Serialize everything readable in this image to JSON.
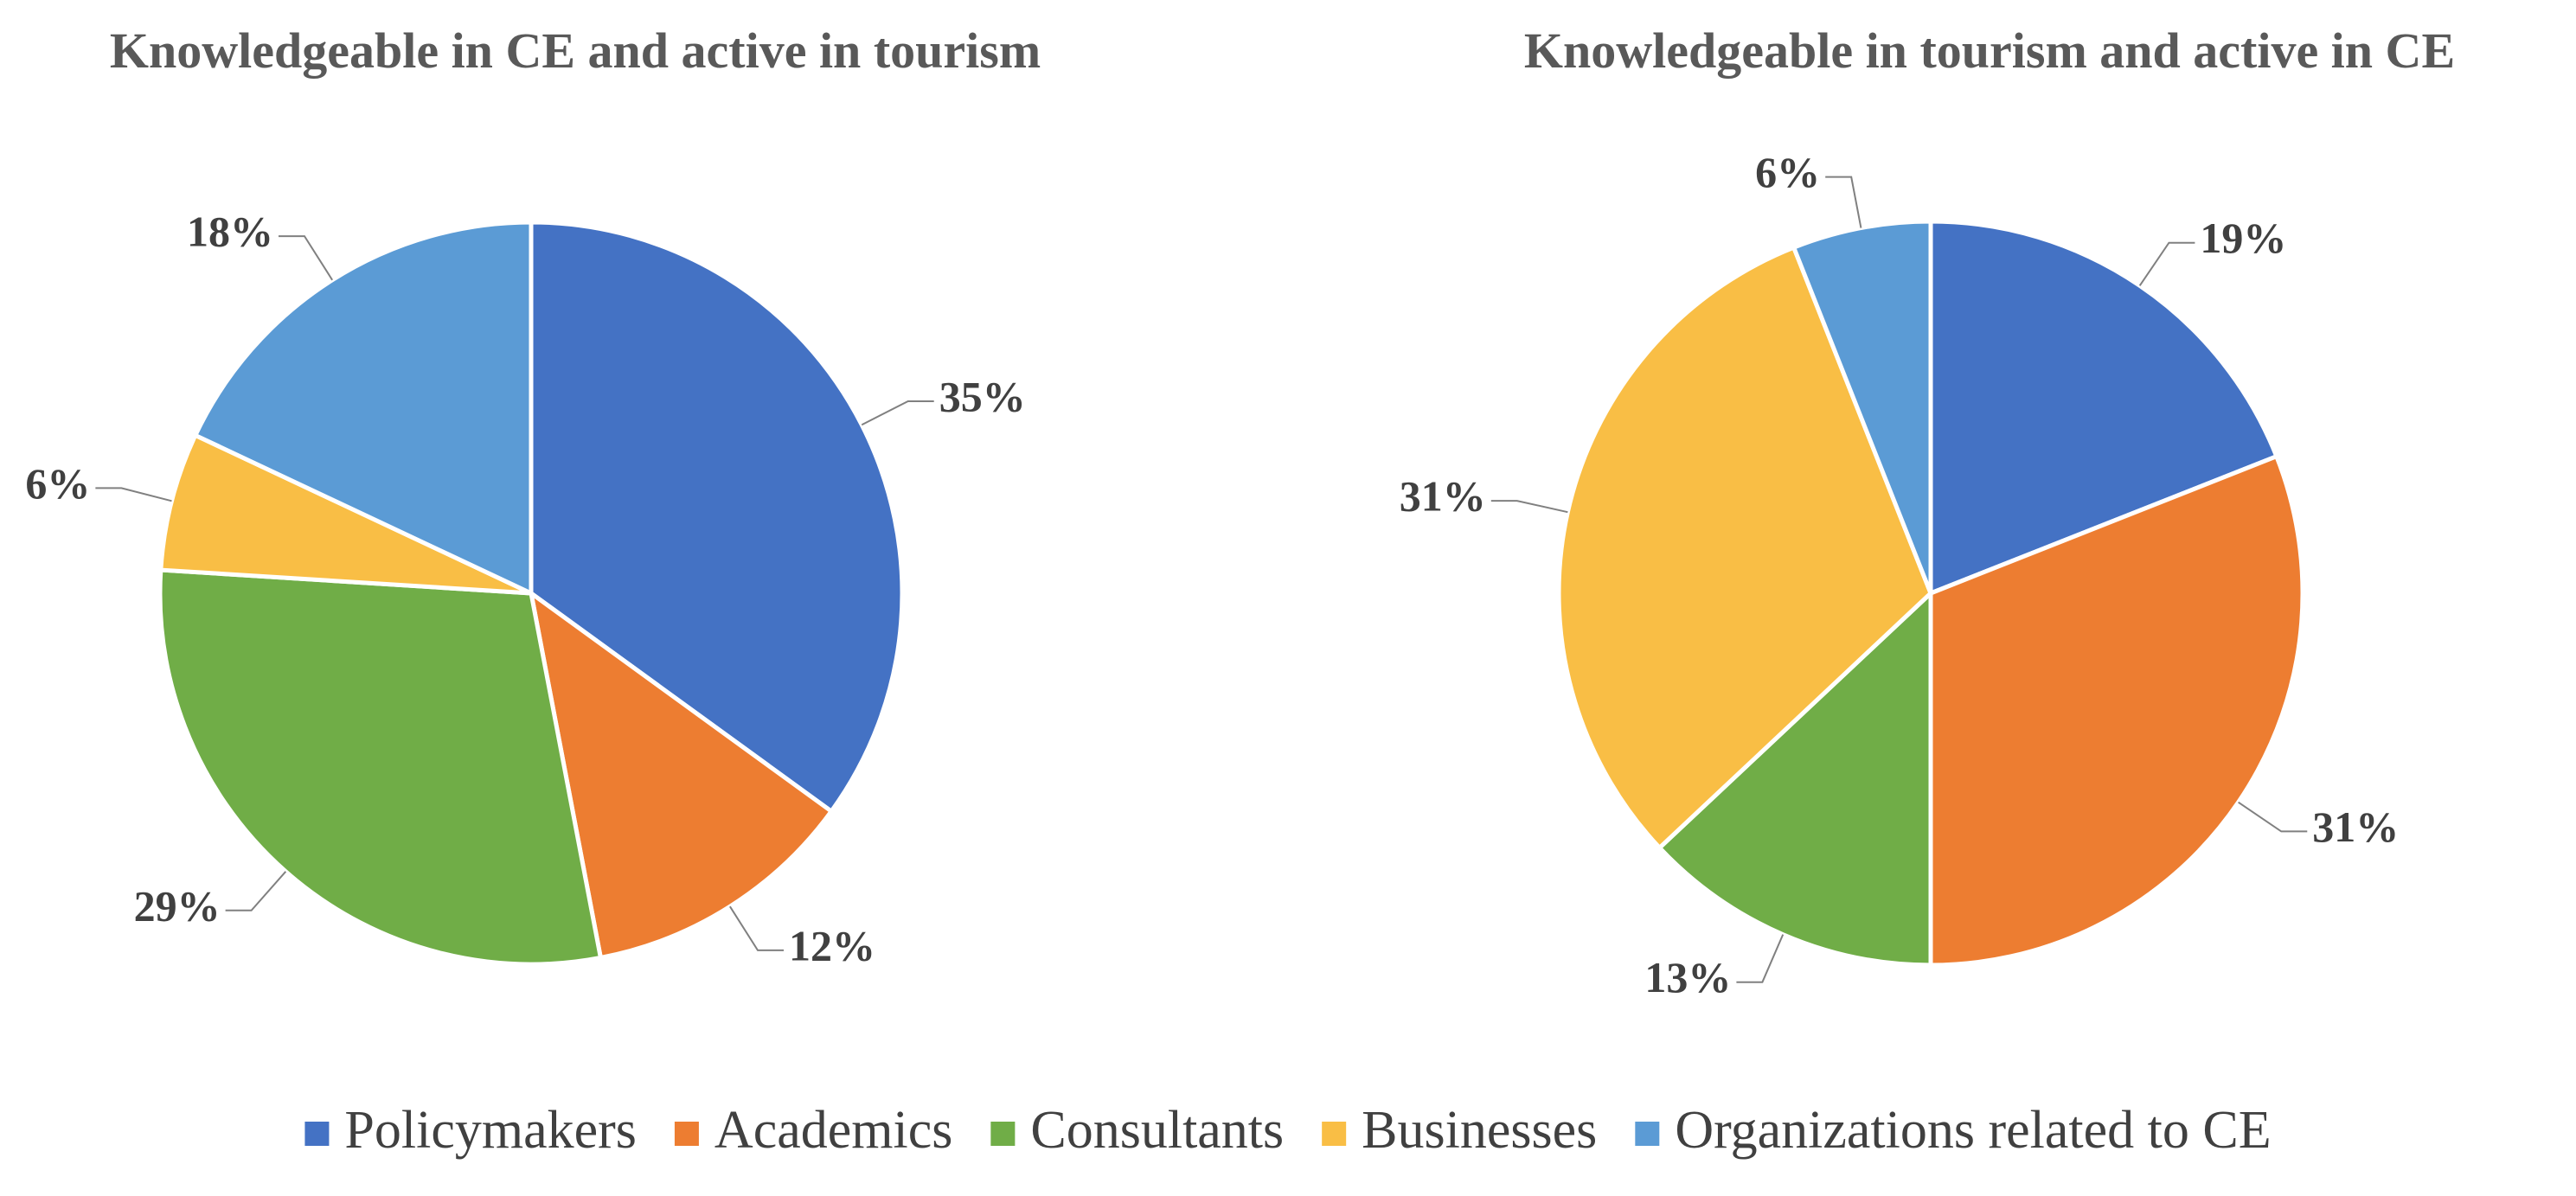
{
  "chart_data": [
    {
      "type": "pie",
      "title": "Knowledgeable in CE and active in tourism",
      "categories": [
        "Policymakers",
        "Academics",
        "Consultants",
        "Businesses",
        "Organizations related to CE"
      ],
      "values": [
        35,
        12,
        29,
        6,
        18
      ],
      "value_labels": [
        "35%",
        "12%",
        "29%",
        "6%",
        "18%"
      ],
      "colors": [
        "#4472c4",
        "#ed7d31",
        "#70ad47",
        "#f9be45",
        "#5b9bd5"
      ]
    },
    {
      "type": "pie",
      "title": "Knowledgeable in tourism and active in CE",
      "categories": [
        "Policymakers",
        "Academics",
        "Consultants",
        "Businesses",
        "Organizations related to CE"
      ],
      "values": [
        19,
        31,
        13,
        31,
        6
      ],
      "value_labels": [
        "19%",
        "31%",
        "13%",
        "31%",
        "6%"
      ],
      "colors": [
        "#4472c4",
        "#ed7d31",
        "#70ad47",
        "#f9be45",
        "#5b9bd5"
      ]
    }
  ]
}
